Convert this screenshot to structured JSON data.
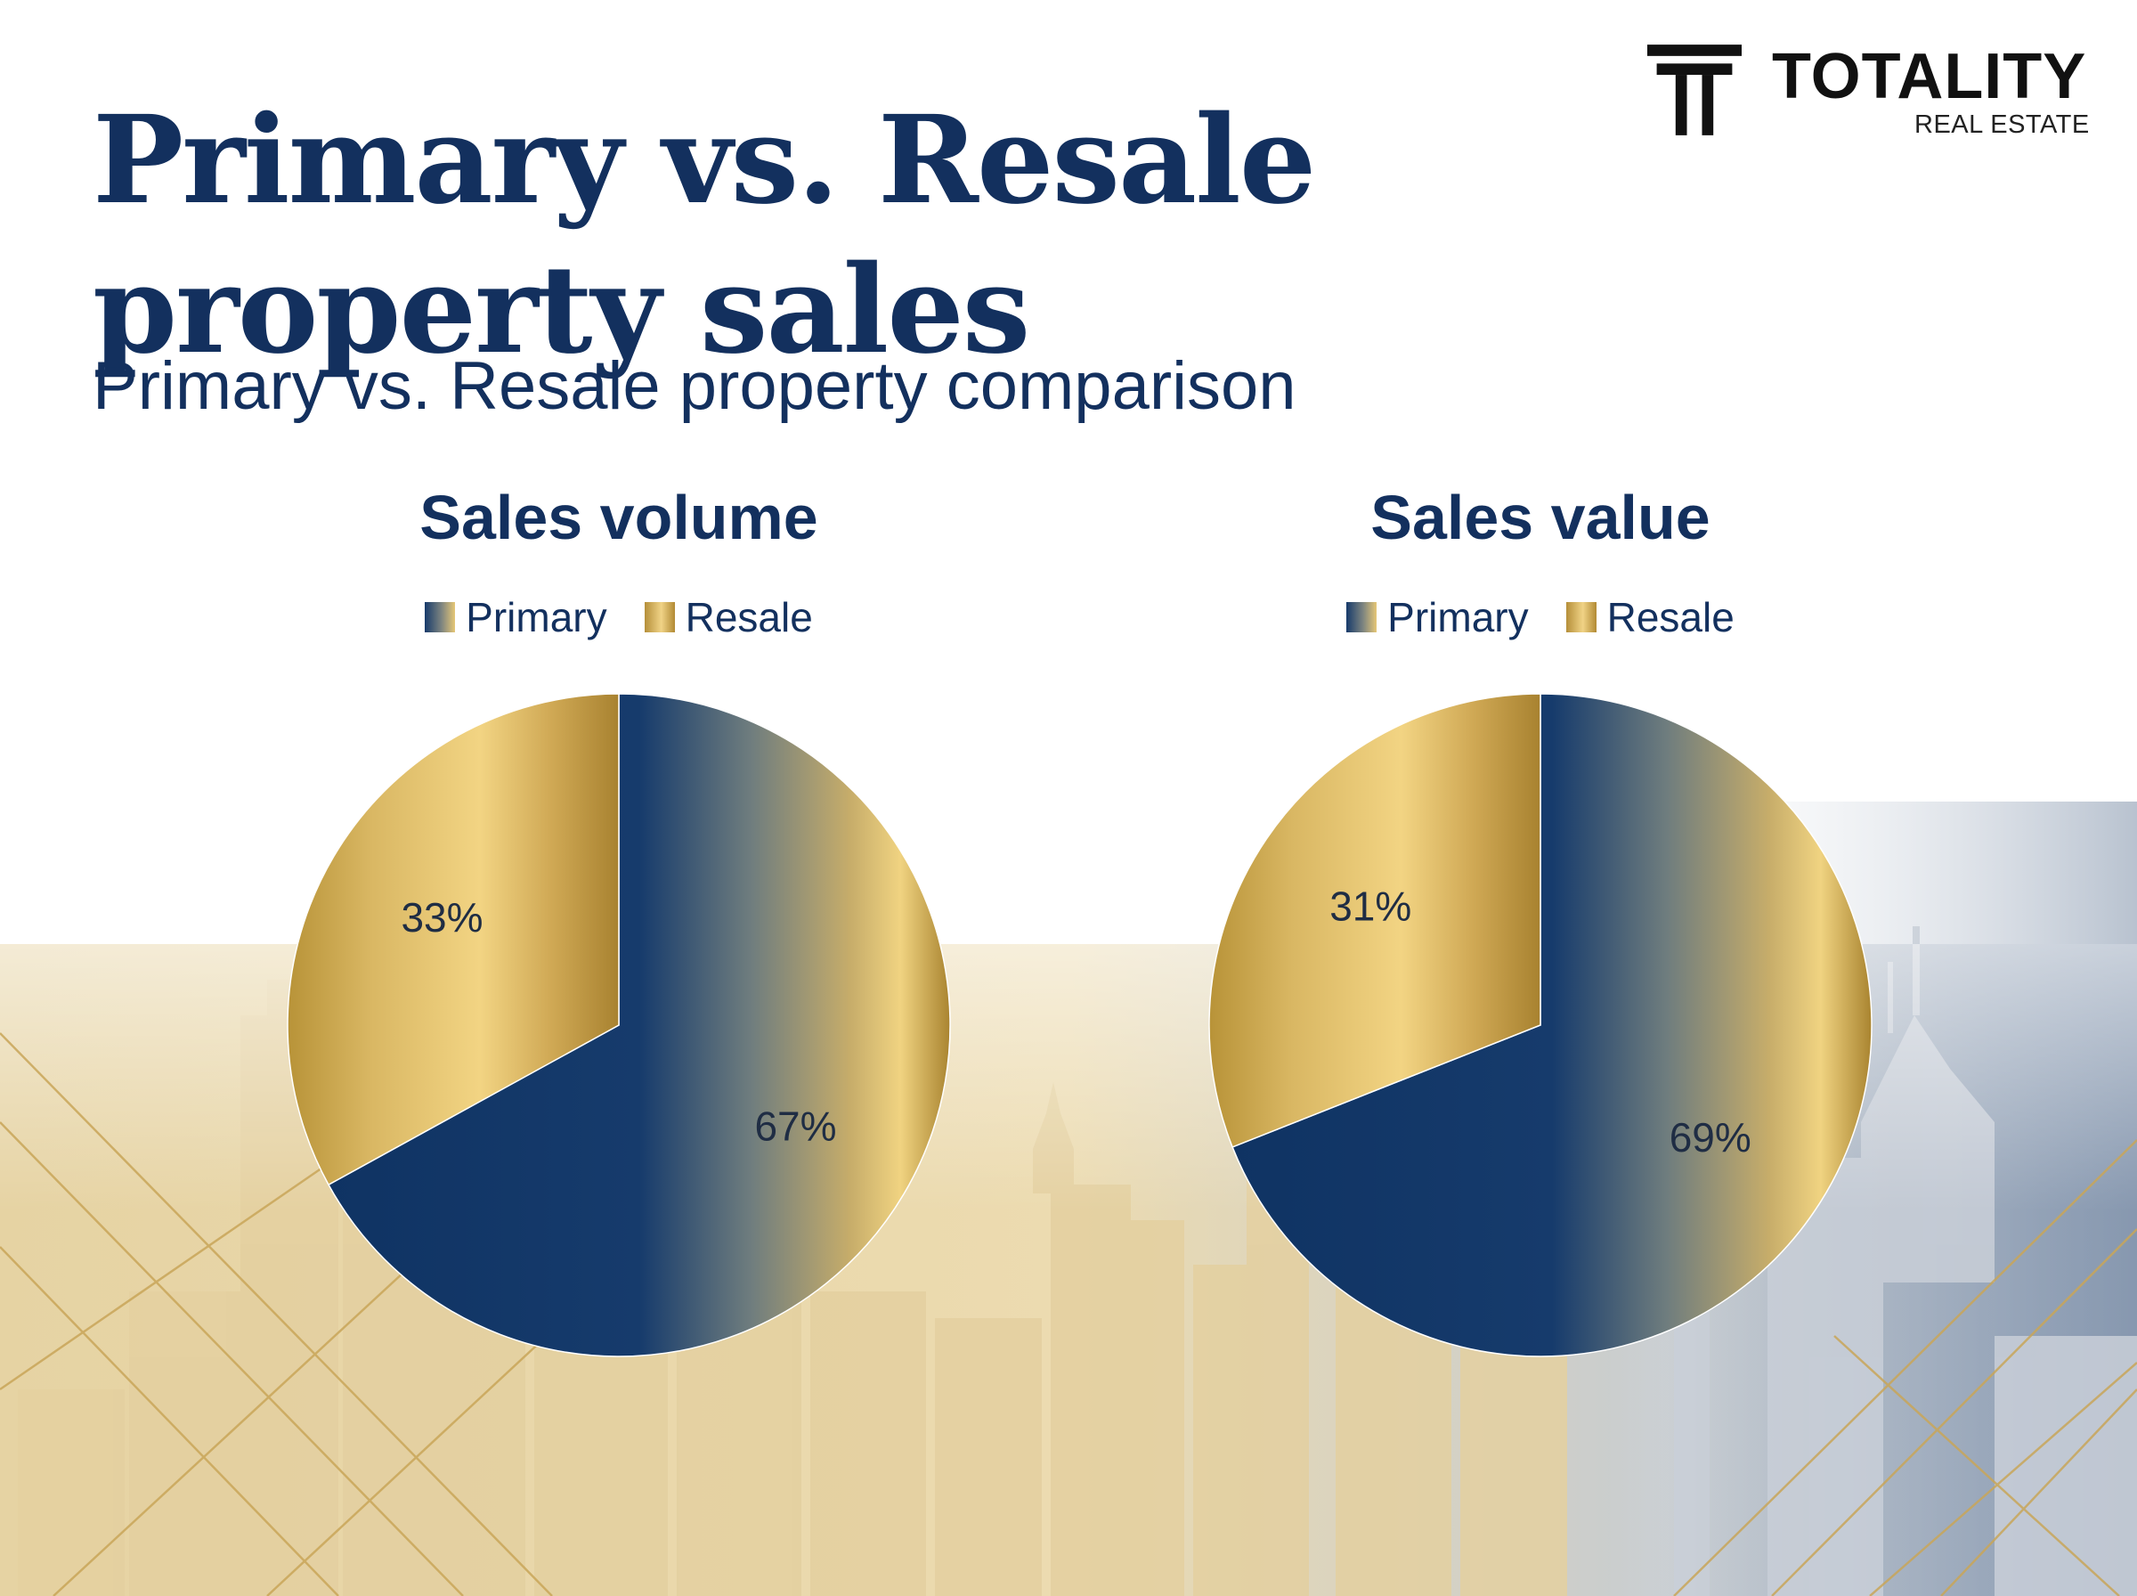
{
  "brand": {
    "name": "TOTALITY",
    "sub": "REAL ESTATE",
    "logo_icon": "t-monogram-icon"
  },
  "title": "Primary vs. Resale property sales",
  "subtitle": "Primary vs. Resale property comparison",
  "colors": {
    "navy": "#13305e",
    "gold": "#d4b25a",
    "slate": "#53708f"
  },
  "chart_data": [
    {
      "type": "pie",
      "title": "Sales volume",
      "legend": [
        "Primary",
        "Resale"
      ],
      "slices": [
        {
          "label": "Primary",
          "value": 67,
          "display": "67%"
        },
        {
          "label": "Resale",
          "value": 33,
          "display": "33%"
        }
      ]
    },
    {
      "type": "pie",
      "title": "Sales value",
      "legend": [
        "Primary",
        "Resale"
      ],
      "slices": [
        {
          "label": "Primary",
          "value": 69,
          "display": "69%"
        },
        {
          "label": "Resale",
          "value": 31,
          "display": "31%"
        }
      ]
    }
  ]
}
